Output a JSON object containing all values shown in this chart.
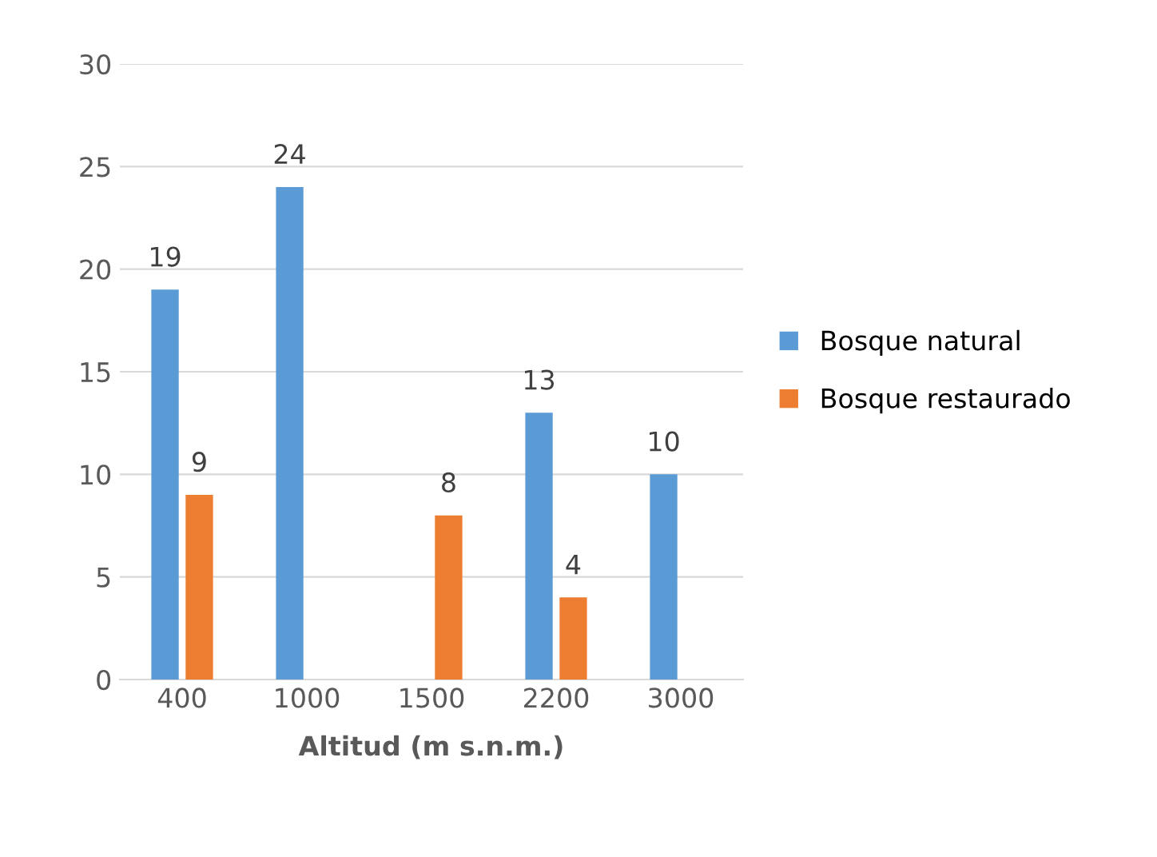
{
  "chart_data": {
    "type": "bar",
    "xlabel": "Altitud (m s.n.m.)",
    "categories": [
      "400",
      "1000",
      "1500",
      "2200",
      "3000"
    ],
    "series": [
      {
        "name": "Bosque natural",
        "color": "#5b9bd5",
        "values": [
          19,
          24,
          null,
          13,
          10
        ]
      },
      {
        "name": "Bosque restaurado",
        "color": "#ed7d31",
        "values": [
          9,
          null,
          8,
          4,
          null
        ]
      }
    ],
    "ylim": [
      0,
      30
    ],
    "yticks": [
      0,
      5,
      10,
      15,
      20,
      25,
      30
    ],
    "grid": "y",
    "legend": "right",
    "data_labels": true
  }
}
